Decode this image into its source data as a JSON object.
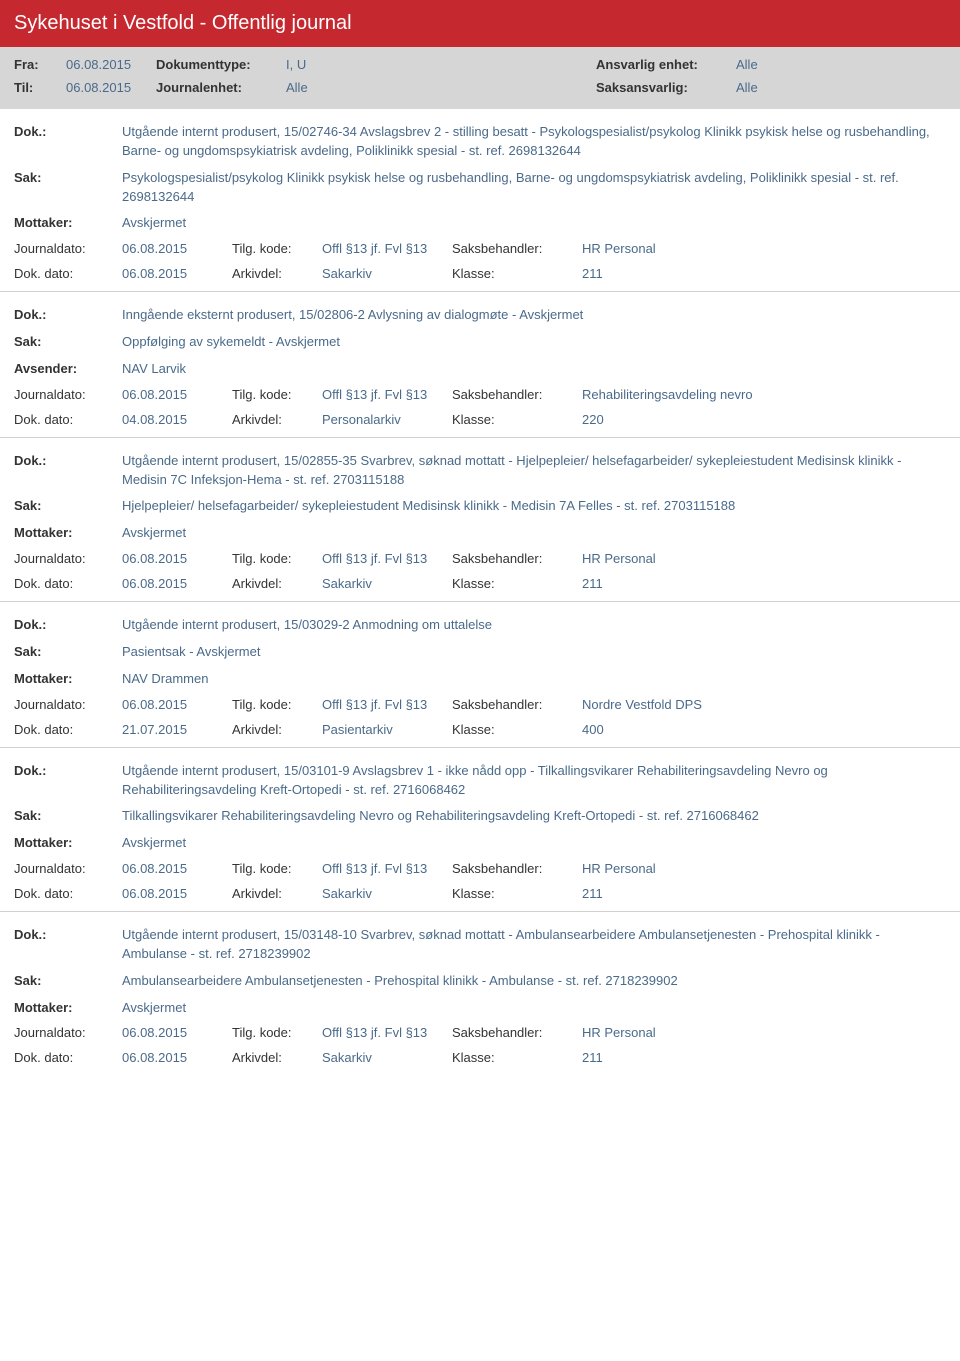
{
  "colors": {
    "header_bg": "#c5282f",
    "grey_bg": "#d6d6d6",
    "text": "#333333",
    "value_blue": "#4a6a8a",
    "border": "#d0d0d0"
  },
  "header": {
    "title": "Sykehuset i Vestfold - Offentlig journal"
  },
  "filter": {
    "fra_label": "Fra:",
    "fra_value": "06.08.2015",
    "til_label": "Til:",
    "til_value": "06.08.2015",
    "doktype_label": "Dokumenttype:",
    "doktype_value": "I, U",
    "journalenhet_label": "Journalenhet:",
    "journalenhet_value": "Alle",
    "ansvarlig_label": "Ansvarlig enhet:",
    "ansvarlig_value": "Alle",
    "saksansvarlig_label": "Saksansvarlig:",
    "saksansvarlig_value": "Alle"
  },
  "labels": {
    "dok": "Dok.:",
    "sak": "Sak:",
    "mottaker": "Mottaker:",
    "avsender": "Avsender:",
    "journaldato": "Journaldato:",
    "dokdato": "Dok. dato:",
    "tilgkode": "Tilg. kode:",
    "arkivdel": "Arkivdel:",
    "saksbehandler": "Saksbehandler:",
    "klasse": "Klasse:"
  },
  "entries": [
    {
      "dok": "Utgående internt produsert, 15/02746-34 Avslagsbrev 2 - stilling besatt - Psykologspesialist/psykolog Klinikk psykisk helse og rusbehandling, Barne- og ungdomspsykiatrisk avdeling, Poliklinikk spesial - st. ref. 2698132644",
      "sak": "Psykologspesialist/psykolog Klinikk psykisk helse og rusbehandling, Barne- og ungdomspsykiatrisk avdeling, Poliklinikk spesial - st. ref. 2698132644",
      "party_label": "Mottaker:",
      "party_value": "Avskjermet",
      "journaldato": "06.08.2015",
      "tilgkode": "Offl §13 jf. Fvl §13",
      "saksbehandler": "HR Personal",
      "dokdato": "06.08.2015",
      "arkivdel": "Sakarkiv",
      "klasse": "211"
    },
    {
      "dok": "Inngående eksternt produsert, 15/02806-2 Avlysning av dialogmøte - Avskjermet",
      "sak": "Oppfølging av sykemeldt - Avskjermet",
      "party_label": "Avsender:",
      "party_value": "NAV Larvik",
      "journaldato": "06.08.2015",
      "tilgkode": "Offl §13 jf. Fvl §13",
      "saksbehandler": "Rehabiliteringsavdeling nevro",
      "dokdato": "04.08.2015",
      "arkivdel": "Personalarkiv",
      "klasse": "220"
    },
    {
      "dok": "Utgående internt produsert, 15/02855-35 Svarbrev, søknad mottatt - Hjelpepleier/ helsefagarbeider/ sykepleiestudent Medisinsk klinikk - Medisin 7C Infeksjon-Hema - st. ref. 2703115188",
      "sak": "Hjelpepleier/ helsefagarbeider/ sykepleiestudent Medisinsk klinikk - Medisin 7A Felles - st. ref. 2703115188",
      "party_label": "Mottaker:",
      "party_value": "Avskjermet",
      "journaldato": "06.08.2015",
      "tilgkode": "Offl §13 jf. Fvl §13",
      "saksbehandler": "HR Personal",
      "dokdato": "06.08.2015",
      "arkivdel": "Sakarkiv",
      "klasse": "211"
    },
    {
      "dok": "Utgående internt produsert, 15/03029-2 Anmodning om uttalelse",
      "sak": "Pasientsak - Avskjermet",
      "party_label": "Mottaker:",
      "party_value": "NAV Drammen",
      "journaldato": "06.08.2015",
      "tilgkode": "Offl §13 jf. Fvl §13",
      "saksbehandler": "Nordre Vestfold DPS",
      "dokdato": "21.07.2015",
      "arkivdel": "Pasientarkiv",
      "klasse": "400"
    },
    {
      "dok": "Utgående internt produsert, 15/03101-9 Avslagsbrev 1 - ikke nådd opp - Tilkallingsvikarer Rehabiliteringsavdeling Nevro og Rehabiliteringsavdeling Kreft-Ortopedi - st. ref. 2716068462",
      "sak": "Tilkallingsvikarer Rehabiliteringsavdeling Nevro og Rehabiliteringsavdeling Kreft-Ortopedi - st. ref. 2716068462",
      "party_label": "Mottaker:",
      "party_value": "Avskjermet",
      "journaldato": "06.08.2015",
      "tilgkode": "Offl §13 jf. Fvl §13",
      "saksbehandler": "HR Personal",
      "dokdato": "06.08.2015",
      "arkivdel": "Sakarkiv",
      "klasse": "211"
    },
    {
      "dok": "Utgående internt produsert, 15/03148-10 Svarbrev, søknad mottatt - Ambulansearbeidere Ambulansetjenesten - Prehospital klinikk - Ambulanse - st. ref. 2718239902",
      "sak": "Ambulansearbeidere Ambulansetjenesten - Prehospital klinikk - Ambulanse - st. ref. 2718239902",
      "party_label": "Mottaker:",
      "party_value": "Avskjermet",
      "journaldato": "06.08.2015",
      "tilgkode": "Offl §13 jf. Fvl §13",
      "saksbehandler": "HR Personal",
      "dokdato": "06.08.2015",
      "arkivdel": "Sakarkiv",
      "klasse": "211"
    }
  ]
}
